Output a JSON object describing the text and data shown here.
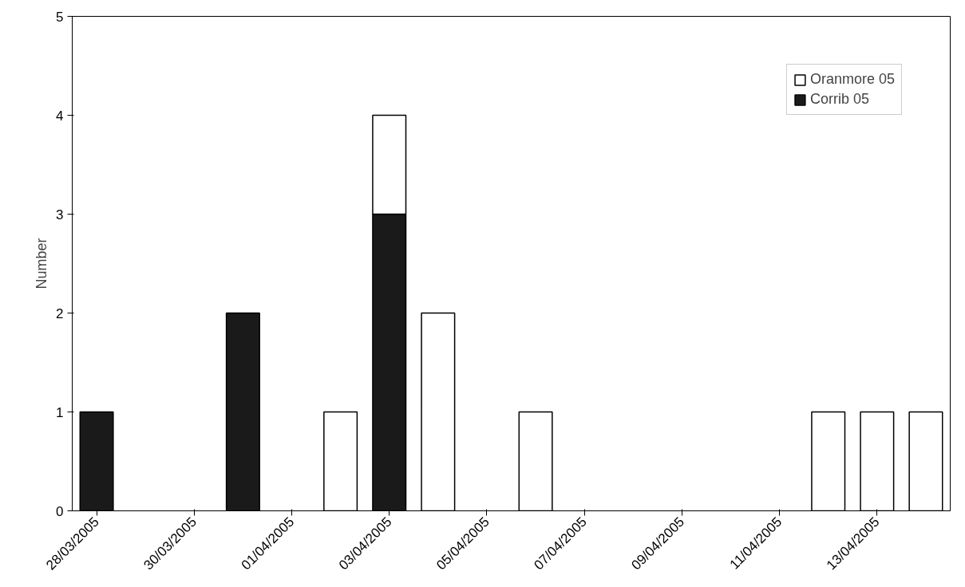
{
  "chart_data": {
    "type": "bar",
    "stacked": true,
    "ylabel": "Number",
    "categories": [
      "28/03/2005",
      null,
      "30/03/2005",
      null,
      "01/04/2005",
      null,
      "03/04/2005",
      null,
      "05/04/2005",
      null,
      "07/04/2005",
      null,
      "09/04/2005",
      null,
      "11/04/2005",
      null,
      "13/04/2005",
      null
    ],
    "series": [
      {
        "name": "Corrib 05",
        "color": "#1a1a1a",
        "values": [
          1,
          0,
          0,
          2,
          0,
          0,
          3,
          0,
          0,
          0,
          0,
          0,
          0,
          0,
          0,
          0,
          0,
          0
        ]
      },
      {
        "name": "Oranmore 05",
        "color": "#ffffff",
        "values": [
          0,
          0,
          0,
          0,
          0,
          1,
          1,
          2,
          0,
          1,
          0,
          0,
          0,
          0,
          0,
          1,
          1,
          1
        ]
      }
    ],
    "ylim": [
      0,
      5
    ],
    "yticks": [
      0,
      1,
      2,
      3,
      4,
      5
    ],
    "grid": false,
    "legend": "top right"
  }
}
